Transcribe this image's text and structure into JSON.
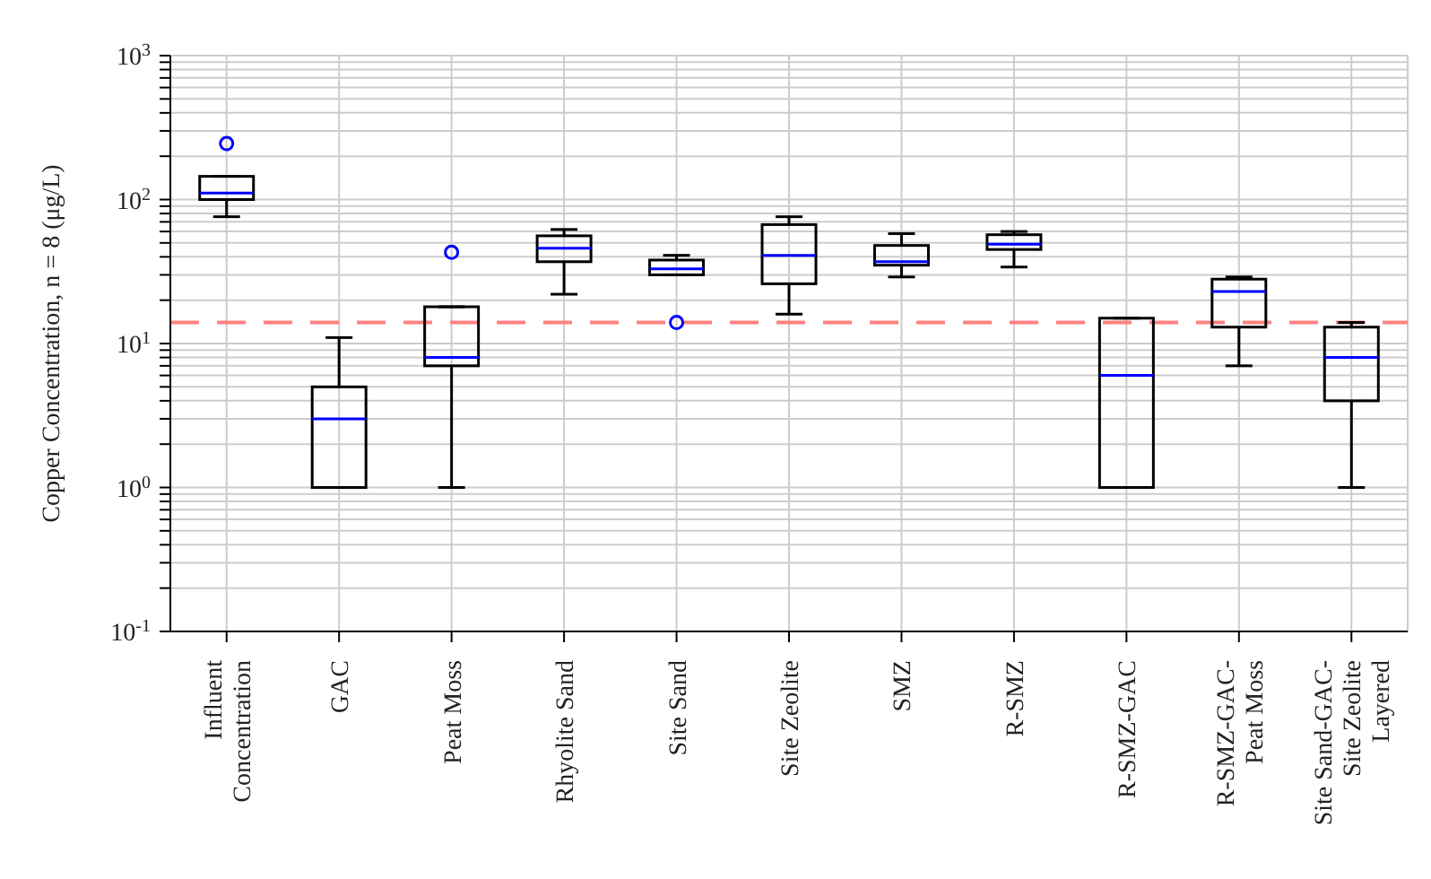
{
  "chart_data": {
    "type": "box",
    "ylabel": "Copper Concentration, n = 8 (μg/L)",
    "categories": [
      "Influent\nConcentration",
      "GAC",
      "Peat Moss",
      "Rhyolite Sand",
      "Site Sand",
      "Site Zeolite",
      "SMZ",
      "R-SMZ",
      "R-SMZ-GAC",
      "R-SMZ-GAC-\nPeat Moss",
      "Site Sand-GAC-\nSite Zeolite\nLayered"
    ],
    "color": "#000000",
    "boxes": [
      {
        "low": 76,
        "q1": 100,
        "median": 111,
        "q3": 145,
        "high": 145,
        "outliers": [
          245
        ]
      },
      {
        "low": 1,
        "q1": 1,
        "median": 3,
        "q3": 5,
        "high": 11
      },
      {
        "low": 1,
        "q1": 7,
        "median": 8,
        "q3": 18,
        "high": 18,
        "outliers": [
          43
        ]
      },
      {
        "low": 22,
        "q1": 37,
        "median": 46,
        "q3": 56,
        "high": 62
      },
      {
        "low": 30,
        "q1": 30,
        "median": 33,
        "q3": 38,
        "high": 41,
        "outliers": [
          14
        ]
      },
      {
        "low": 16,
        "q1": 26,
        "median": 41,
        "q3": 67,
        "high": 76
      },
      {
        "low": 29,
        "q1": 35,
        "median": 37,
        "q3": 48,
        "high": 58
      },
      {
        "low": 34,
        "q1": 45,
        "median": 49,
        "q3": 57,
        "high": 60
      },
      {
        "low": 1,
        "q1": 1,
        "median": 6,
        "q3": 15,
        "high": 15
      },
      {
        "low": 7,
        "q1": 13,
        "median": 23,
        "q3": 28,
        "high": 29
      },
      {
        "low": 1,
        "q1": 4,
        "median": 8,
        "q3": 13,
        "high": 14
      }
    ],
    "log": "y",
    "ylim": [
      0.1,
      1000
    ],
    "yticks": [
      {
        "value": 0.1,
        "label": "10$^{-1}$"
      },
      {
        "value": 0.2,
        "label": null
      },
      {
        "value": 0.3,
        "label": null
      },
      {
        "value": 0.4,
        "label": null
      },
      {
        "value": 0.5,
        "label": null
      },
      {
        "value": 0.6,
        "label": null
      },
      {
        "value": 0.7,
        "label": null
      },
      {
        "value": 0.8,
        "label": null
      },
      {
        "value": 0.9,
        "label": null
      },
      {
        "value": 1,
        "label": "10$^{0}$"
      },
      {
        "value": 2,
        "label": null
      },
      {
        "value": 3,
        "label": null
      },
      {
        "value": 4,
        "label": null
      },
      {
        "value": 5,
        "label": null
      },
      {
        "value": 6,
        "label": null
      },
      {
        "value": 7,
        "label": null
      },
      {
        "value": 8,
        "label": null
      },
      {
        "value": 9,
        "label": null
      },
      {
        "value": 10,
        "label": "10$^{1}$"
      },
      {
        "value": 20,
        "label": null
      },
      {
        "value": 30,
        "label": null
      },
      {
        "value": 40,
        "label": null
      },
      {
        "value": 50,
        "label": null
      },
      {
        "value": 60,
        "label": null
      },
      {
        "value": 70,
        "label": null
      },
      {
        "value": 80,
        "label": null
      },
      {
        "value": 90,
        "label": null
      },
      {
        "value": 100,
        "label": "10$^{2}$"
      },
      {
        "value": 200,
        "label": null
      },
      {
        "value": 300,
        "label": null
      },
      {
        "value": 400,
        "label": null
      },
      {
        "value": 500,
        "label": null
      },
      {
        "value": 600,
        "label": null
      },
      {
        "value": 700,
        "label": null
      },
      {
        "value": 800,
        "label": null
      },
      {
        "value": 900,
        "label": null
      },
      {
        "value": 1000,
        "label": "10$^{3}$"
      }
    ],
    "ref_lines": [
      {
        "axis": "y",
        "value": 14,
        "color": "#ff8080",
        "line_style": "dashed"
      }
    ],
    "grid": true
  }
}
